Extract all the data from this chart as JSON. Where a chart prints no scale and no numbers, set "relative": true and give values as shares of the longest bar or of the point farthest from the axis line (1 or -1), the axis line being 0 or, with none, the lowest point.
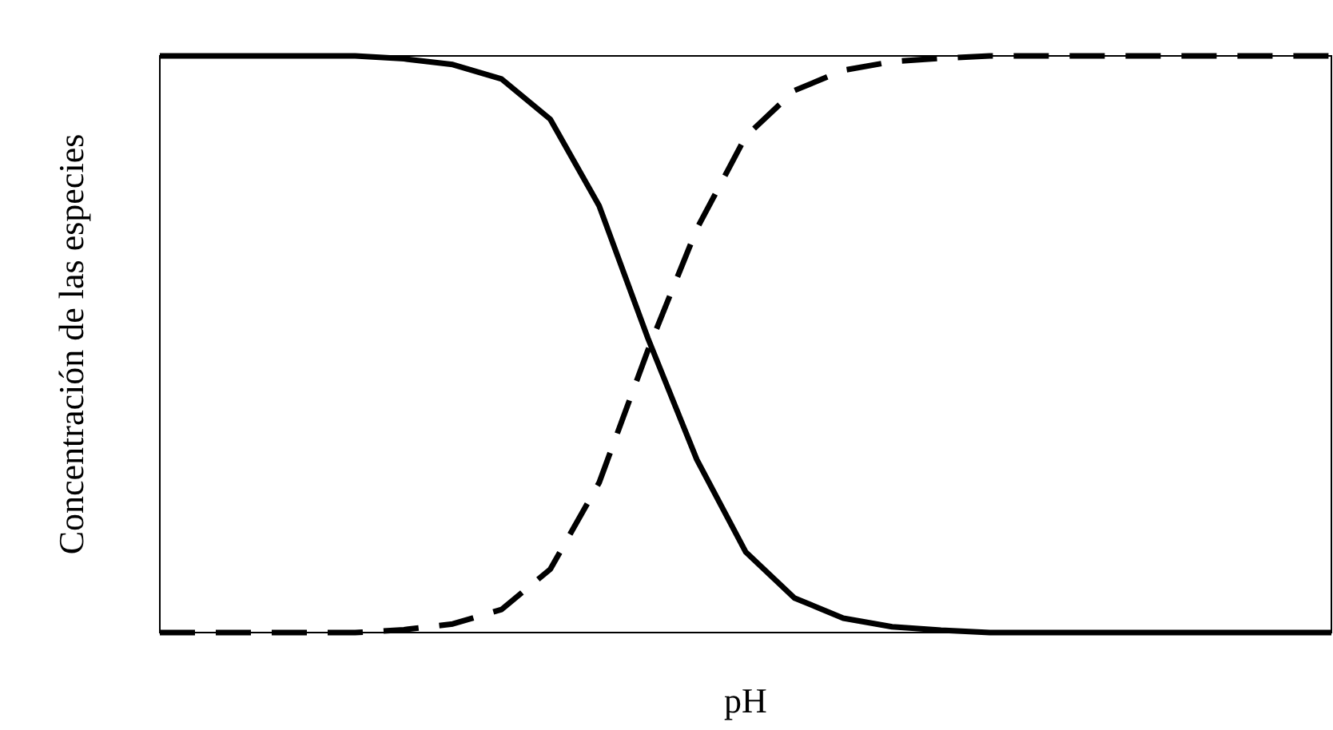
{
  "chart_data": {
    "type": "line",
    "relative": true,
    "xlabel": "pH",
    "ylabel": "Concentración de las especies",
    "categories": [
      null,
      null,
      null,
      null,
      null,
      null,
      null,
      null,
      null,
      null,
      null,
      null,
      null,
      null,
      null,
      null,
      null,
      null,
      null,
      null,
      null,
      null,
      null,
      null,
      null
    ],
    "series": [
      {
        "color": "#000000",
        "line_style": "solid",
        "values": [
          1,
          1,
          1,
          1,
          1,
          0.995,
          0.985,
          0.96,
          0.89,
          0.74,
          0.51,
          0.3,
          0.14,
          0.06,
          0.025,
          0.01,
          0.004,
          0,
          0,
          0,
          0,
          0,
          0,
          0,
          0
        ]
      },
      {
        "color": "#000000",
        "line_style": "dashed",
        "values": [
          0,
          0,
          0,
          0,
          0,
          0.005,
          0.015,
          0.04,
          0.11,
          0.26,
          0.49,
          0.7,
          0.86,
          0.94,
          0.975,
          0.99,
          0.996,
          1,
          1,
          1,
          1,
          1,
          1,
          1,
          1
        ]
      }
    ]
  }
}
